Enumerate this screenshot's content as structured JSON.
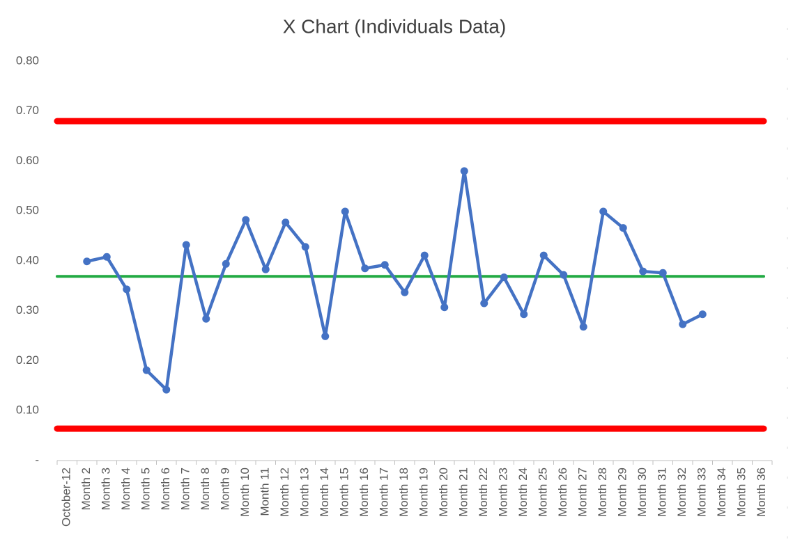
{
  "chart_data": {
    "type": "line",
    "title": "X Chart (Individuals Data)",
    "categories": [
      "October-12",
      "Month 2",
      "Month 3",
      "Month 4",
      "Month 5",
      "Month 6",
      "Month 7",
      "Month 8",
      "Month 9",
      "Month 10",
      "Month 11",
      "Month 12",
      "Month 13",
      "Month 14",
      "Month 15",
      "Month 16",
      "Month 17",
      "Month 18",
      "Month 19",
      "Month 20",
      "Month 21",
      "Month 22",
      "Month 23",
      "Month 24",
      "Month 25",
      "Month 26",
      "Month 27",
      "Month 28",
      "Month 29",
      "Month 30",
      "Month 31",
      "Month 32",
      "Month 33",
      "Month 34",
      "Month 35",
      "Month 36"
    ],
    "series": [
      {
        "color": "#4472c4",
        "values": [
          null,
          0.399,
          0.408,
          0.343,
          0.181,
          0.142,
          0.432,
          0.284,
          0.394,
          0.482,
          0.383,
          0.477,
          0.428,
          0.249,
          0.499,
          0.385,
          0.392,
          0.337,
          0.411,
          0.307,
          0.58,
          0.315,
          0.367,
          0.293,
          0.411,
          0.372,
          0.268,
          0.499,
          0.466,
          0.379,
          0.376,
          0.273,
          0.293,
          null,
          null,
          null
        ]
      }
    ],
    "reference_lines": [
      {
        "value": 0.68,
        "color": "#ff0000"
      },
      {
        "value": 0.369,
        "color": "#22aa44"
      },
      {
        "value": 0.064,
        "color": "#ff0000"
      }
    ],
    "ylim": [
      0,
      0.8
    ],
    "yticks": [
      {
        "value": 0,
        "label": "-"
      },
      {
        "value": 0.1,
        "label": "0.10"
      },
      {
        "value": 0.2,
        "label": "0.20"
      },
      {
        "value": 0.3,
        "label": "0.30"
      },
      {
        "value": 0.4,
        "label": "0.40"
      },
      {
        "value": 0.5,
        "label": "0.50"
      },
      {
        "value": 0.6,
        "label": "0.60"
      },
      {
        "value": 0.7,
        "label": "0.70"
      },
      {
        "value": 0.8,
        "label": "0.80"
      }
    ],
    "grid": false
  }
}
